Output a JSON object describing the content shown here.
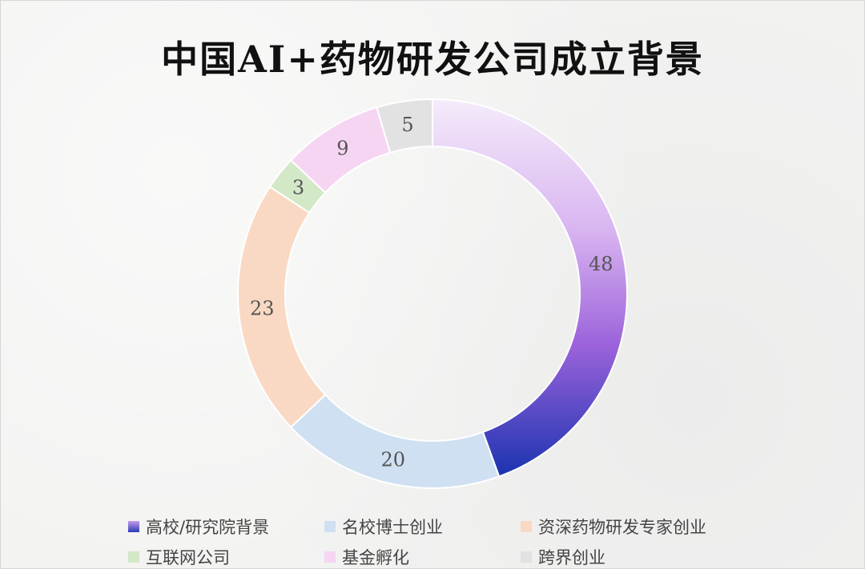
{
  "chart_data": {
    "type": "pie",
    "title": "中国AI+药物研发公司成立背景",
    "categories": [
      "高校/研究院背景",
      "名校博士创业",
      "资深药物研发专家创业",
      "互联网公司",
      "基金孵化",
      "跨界创业"
    ],
    "values": [
      48,
      20,
      23,
      3,
      9,
      5
    ],
    "colors": [
      "#7b4fd6",
      "#cfe0f2",
      "#f9d9c3",
      "#d3e8c7",
      "#f6d5f3",
      "#e2e2e2"
    ],
    "data_labels": [
      "48",
      "20",
      "23",
      "3",
      "9",
      "5"
    ],
    "legend_placement": "bottom",
    "style": "donut"
  },
  "legend": {
    "items": [
      "高校/研究院背景",
      "名校博士创业",
      "资深药物研发专家创业",
      "互联网公司",
      "基金孵化",
      "跨界创业"
    ]
  }
}
